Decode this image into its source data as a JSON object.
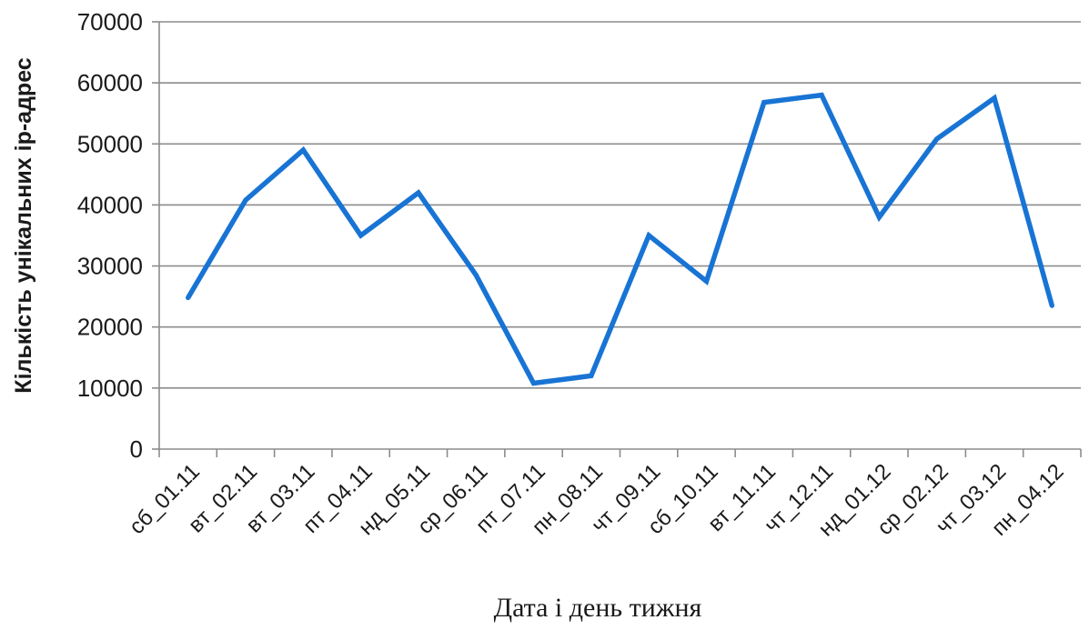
{
  "chart_data": {
    "type": "line",
    "title": "",
    "xlabel": "Дата і день тижня",
    "ylabel": "Кількість  унікальних  ip-адрес",
    "ylim": [
      0,
      70000
    ],
    "yticks": [
      0,
      10000,
      20000,
      30000,
      40000,
      50000,
      60000,
      70000
    ],
    "ytick_labels": [
      "0",
      "10000",
      "20000",
      "30000",
      "40000",
      "50000",
      "60000",
      "70000"
    ],
    "grid": true,
    "legend": "none",
    "categories": [
      "сб_01.11",
      "вт_02.11",
      "вт_03.11",
      "пт_04.11",
      "нд_05.11",
      "ср_06.11",
      "пт_07.11",
      "пн_08.11",
      "чт_09.11",
      "сб_10.11",
      "вт_11.11",
      "чт_12.11",
      "нд_01.12",
      "ср_02.12",
      "чт_03.12",
      "пн_04.12"
    ],
    "series": [
      {
        "color": "#1874d4",
        "values": [
          24800,
          40800,
          49000,
          35000,
          42000,
          28500,
          10800,
          12000,
          35000,
          27500,
          56800,
          58000,
          38000,
          50800,
          57500,
          23500
        ]
      }
    ]
  }
}
